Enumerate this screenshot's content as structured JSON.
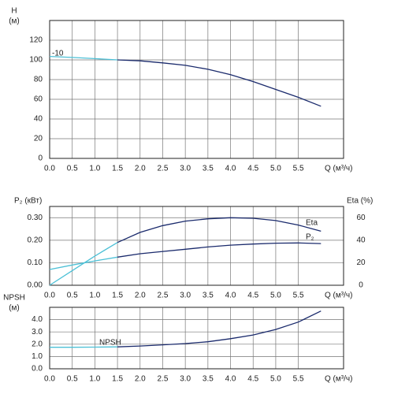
{
  "chart_data": [
    {
      "type": "line",
      "y_label": "H",
      "y_unit": "(м)",
      "x_label": "Q (м³/ч)",
      "xlim": [
        0,
        6.5
      ],
      "xticks": [
        {
          "value": 0,
          "label": "0.0"
        },
        {
          "value": 0.5,
          "label": "0.5"
        },
        {
          "value": 1,
          "label": "1.0"
        },
        {
          "value": 1.5,
          "label": "1.5"
        },
        {
          "value": 2,
          "label": "2.0"
        },
        {
          "value": 2.5,
          "label": "2.5"
        },
        {
          "value": 3,
          "label": "3.0"
        },
        {
          "value": 3.5,
          "label": "3.5"
        },
        {
          "value": 4,
          "label": "4.0"
        },
        {
          "value": 4.5,
          "label": "4.5"
        },
        {
          "value": 5,
          "label": "5.0"
        },
        {
          "value": 5.5,
          "label": "5.5"
        }
      ],
      "ylim": [
        0,
        140
      ],
      "yticks": [
        0,
        20,
        40,
        60,
        80,
        100,
        120
      ],
      "grid": true,
      "series": [
        {
          "color": "#4cc0d6",
          "x": [
            0,
            0.5,
            1,
            1.5
          ],
          "values": [
            103.5,
            102.5,
            101.3,
            100
          ]
        },
        {
          "name": "-10",
          "color": "#1a2a6c",
          "x": [
            1.5,
            2,
            2.5,
            3,
            3.5,
            4,
            4.5,
            5,
            5.5,
            6
          ],
          "values": [
            100,
            99,
            97,
            94.5,
            90.5,
            85,
            78,
            70,
            62,
            53
          ]
        }
      ]
    },
    {
      "type": "line",
      "y_label": "P₂ (кВт)",
      "y2_label": "Eta (%)",
      "x_label": "Q (м³/ч)",
      "xlim": [
        0,
        6.5
      ],
      "xticks": [
        {
          "value": 0,
          "label": "0.0"
        },
        {
          "value": 0.5,
          "label": "0.5"
        },
        {
          "value": 1,
          "label": "1.0"
        },
        {
          "value": 1.5,
          "label": "1.5"
        },
        {
          "value": 2,
          "label": "2.0"
        },
        {
          "value": 2.5,
          "label": "2.5"
        },
        {
          "value": 3,
          "label": "3.0"
        },
        {
          "value": 3.5,
          "label": "3.5"
        },
        {
          "value": 4,
          "label": "4.0"
        },
        {
          "value": 4.5,
          "label": "4.5"
        },
        {
          "value": 5,
          "label": "5.0"
        },
        {
          "value": 5.5,
          "label": "5.5"
        }
      ],
      "ylim": [
        0,
        0.35
      ],
      "yticks": [
        {
          "value": 0,
          "label": "0.00"
        },
        {
          "value": 0.1,
          "label": "0.10"
        },
        {
          "value": 0.2,
          "label": "0.20"
        },
        {
          "value": 0.3,
          "label": "0.30"
        }
      ],
      "y2lim": [
        0,
        70
      ],
      "y2ticks": [
        0,
        20,
        40,
        60
      ],
      "grid": true,
      "series": [
        {
          "color": "#4cc0d6",
          "axis": "y2",
          "x": [
            0,
            0.5,
            1,
            1.5
          ],
          "values": [
            0,
            13,
            26,
            38
          ]
        },
        {
          "name": "Eta",
          "color": "#1a2a6c",
          "axis": "y2",
          "x": [
            1.5,
            2,
            2.5,
            3,
            3.5,
            4,
            4.5,
            5,
            5.5,
            6
          ],
          "values": [
            38,
            47,
            53,
            57,
            59,
            60,
            59.5,
            57.5,
            53.5,
            48
          ]
        },
        {
          "color": "#4cc0d6",
          "x": [
            0,
            0.5,
            1,
            1.5
          ],
          "values": [
            0.07,
            0.09,
            0.108,
            0.125
          ]
        },
        {
          "name": "P₂",
          "color": "#1a2a6c",
          "x": [
            1.5,
            2,
            2.5,
            3,
            3.5,
            4,
            4.5,
            5,
            5.5,
            6
          ],
          "values": [
            0.125,
            0.14,
            0.15,
            0.16,
            0.17,
            0.178,
            0.183,
            0.187,
            0.188,
            0.185
          ]
        }
      ]
    },
    {
      "type": "line",
      "y_label": "NPSH",
      "y_unit": "(м)",
      "x_label": "Q (м³/ч)",
      "xlim": [
        0,
        6.5
      ],
      "xticks": [
        {
          "value": 0,
          "label": "0.0"
        },
        {
          "value": 0.5,
          "label": "0.5"
        },
        {
          "value": 1,
          "label": "1.0"
        },
        {
          "value": 1.5,
          "label": "1.5"
        },
        {
          "value": 2,
          "label": "2.0"
        },
        {
          "value": 2.5,
          "label": "2.5"
        },
        {
          "value": 3,
          "label": "3.0"
        },
        {
          "value": 3.5,
          "label": "3.5"
        },
        {
          "value": 4,
          "label": "4.0"
        },
        {
          "value": 4.5,
          "label": "4.5"
        },
        {
          "value": 5,
          "label": "5.0"
        },
        {
          "value": 5.5,
          "label": "5.5"
        }
      ],
      "ylim": [
        0,
        5
      ],
      "yticks": [
        {
          "value": 0,
          "label": "0.0"
        },
        {
          "value": 1,
          "label": "1.0"
        },
        {
          "value": 2,
          "label": "2.0"
        },
        {
          "value": 3,
          "label": "3.0"
        },
        {
          "value": 4,
          "label": "4.0"
        }
      ],
      "grid": true,
      "series": [
        {
          "color": "#4cc0d6",
          "x": [
            0,
            0.5,
            1,
            1.5
          ],
          "values": [
            1.75,
            1.75,
            1.76,
            1.78
          ]
        },
        {
          "name": "NPSH",
          "color": "#1a2a6c",
          "x": [
            1.5,
            2,
            2.5,
            3,
            3.5,
            4,
            4.5,
            5,
            5.5,
            6
          ],
          "values": [
            1.78,
            1.85,
            1.95,
            2.05,
            2.2,
            2.45,
            2.75,
            3.2,
            3.8,
            4.7
          ]
        }
      ]
    }
  ]
}
